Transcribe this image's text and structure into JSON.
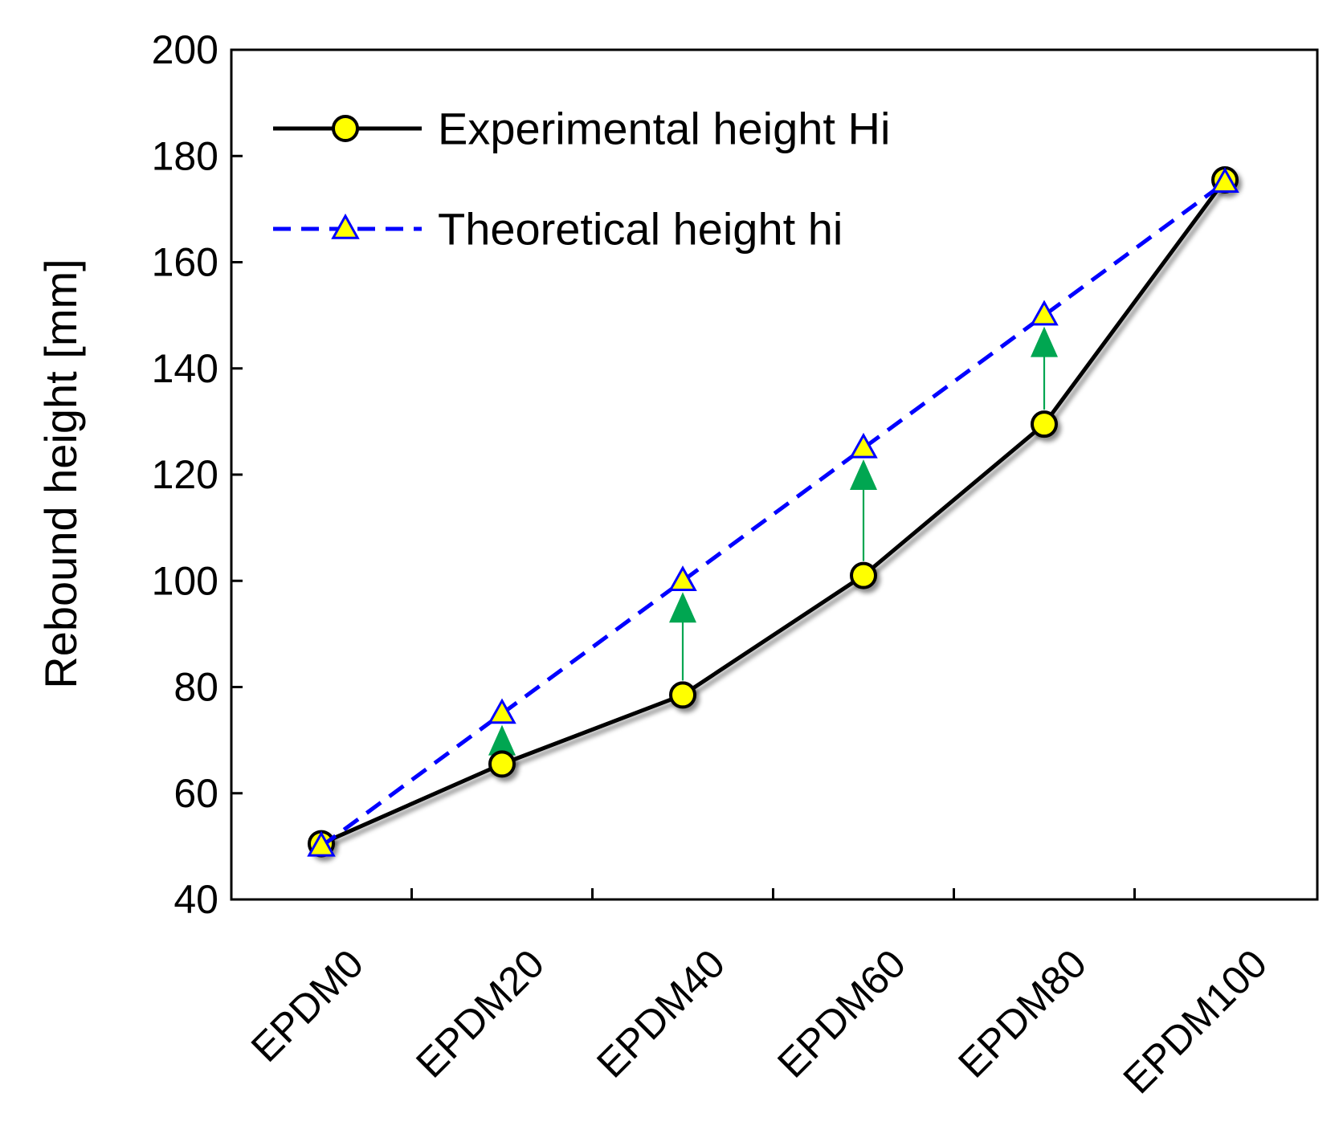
{
  "chart_data": {
    "type": "line",
    "categories": [
      "EPDM0",
      "EPDM20",
      "EPDM40",
      "EPDM60",
      "EPDM80",
      "EPDM100"
    ],
    "ylabel": "Rebound height  [mm]",
    "xlabel": "",
    "ylim": [
      40,
      200
    ],
    "yticks": [
      40,
      60,
      80,
      100,
      120,
      140,
      160,
      180,
      200
    ],
    "grid": false,
    "legend_position": "top-left",
    "series": [
      {
        "name": "Experimental height Hi",
        "values": [
          50.5,
          65.5,
          78.5,
          101,
          129.5,
          175.5
        ],
        "line_color": "#000000",
        "line_style": "solid",
        "marker": "circle",
        "marker_fill": "#ffff00"
      },
      {
        "name": "Theoretical height hi",
        "values": [
          50,
          75,
          100,
          125,
          150,
          175
        ],
        "line_color": "#0000ff",
        "line_style": "dashed",
        "marker": "triangle",
        "marker_fill": "#ffff00"
      }
    ],
    "arrows": {
      "color": "#00a651",
      "description": "upward arrows from experimental to theoretical",
      "from": [
        {
          "category": "EPDM20",
          "value": 65.5
        },
        {
          "category": "EPDM40",
          "value": 78.5
        },
        {
          "category": "EPDM60",
          "value": 101
        },
        {
          "category": "EPDM80",
          "value": 129.5
        }
      ],
      "to": [
        {
          "category": "EPDM20",
          "value": 75
        },
        {
          "category": "EPDM40",
          "value": 100
        },
        {
          "category": "EPDM60",
          "value": 125
        },
        {
          "category": "EPDM80",
          "value": 150
        }
      ]
    }
  }
}
